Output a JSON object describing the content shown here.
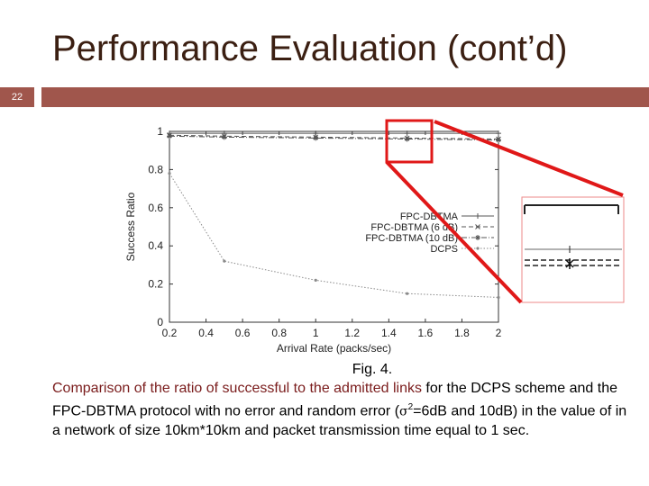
{
  "slide": {
    "title": "Performance Evaluation (cont’d)",
    "page_number": "22",
    "accent_color": "#a0564c"
  },
  "caption": {
    "fig_label": "Fig. 4.",
    "highlighted": "Comparison of the ratio of successful to the admitted links",
    "part1": " for the DCPS scheme and the FPC-DBTMA protocol with no error and random error (",
    "sigma": "σ",
    "sup": "2",
    "part2": "=6dB and 10dB) in the value of in a network of size 10km*10km and packet transmission time equal to 1 sec.",
    "highlight_color": "#7a1c1c"
  },
  "chart_data": {
    "type": "line",
    "xlabel": "Arrival Rate (packs/sec)",
    "ylabel": "Success Ratio",
    "xlim": [
      0.2,
      2.0
    ],
    "ylim": [
      0,
      1.0
    ],
    "xticks": [
      "0.2",
      "0.4",
      "0.6",
      "0.8",
      "1",
      "1.2",
      "1.4",
      "1.6",
      "1.8",
      "2"
    ],
    "yticks": [
      "0",
      "0.2",
      "0.4",
      "0.6",
      "0.8",
      "1"
    ],
    "x": [
      0.2,
      0.5,
      1.0,
      1.5,
      2.0
    ],
    "legend_placement": "center-right",
    "series": [
      {
        "name": "FPC-DBTMA",
        "values": [
          0.99,
          0.99,
          0.99,
          0.99,
          0.99
        ],
        "color": "#555555",
        "dash": "solid",
        "marker": "plus"
      },
      {
        "name": "FPC-DBTMA (6 dB)",
        "values": [
          0.98,
          0.975,
          0.97,
          0.965,
          0.96
        ],
        "color": "#555555",
        "dash": "dashed",
        "marker": "x"
      },
      {
        "name": "FPC-DBTMA (10 dB)",
        "values": [
          0.975,
          0.97,
          0.965,
          0.96,
          0.955
        ],
        "color": "#555555",
        "dash": "dashdot",
        "marker": "star"
      },
      {
        "name": "DCPS",
        "values": [
          0.78,
          0.32,
          0.22,
          0.15,
          0.13
        ],
        "color": "#8a8a8a",
        "dash": "dotted",
        "marker": "dot"
      }
    ],
    "highlight_color": "#e01818"
  }
}
